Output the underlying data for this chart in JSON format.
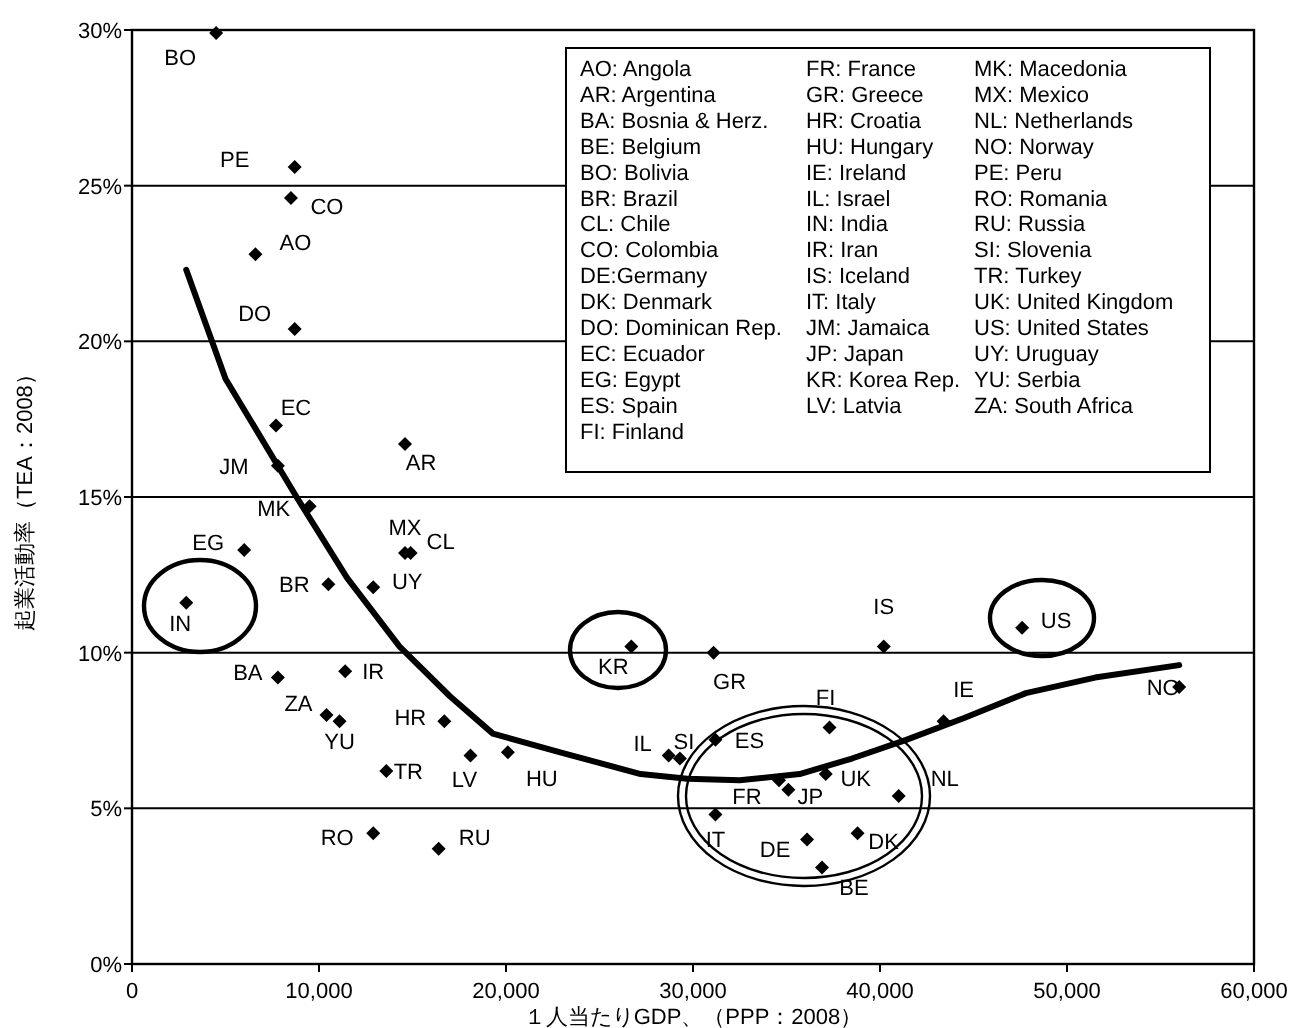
{
  "chart_data": {
    "type": "scatter",
    "xlabel": "１人当たりGDP、（PPP：2008）",
    "ylabel": "起業活動率（TEA：2008）",
    "xlim": [
      0,
      60000
    ],
    "ylim": [
      0,
      30
    ],
    "xticks": [
      0,
      {
        "value": 10000,
        "label": "10,000"
      },
      {
        "value": 20000,
        "label": "20,000"
      },
      {
        "value": 30000,
        "label": "30,000"
      },
      {
        "value": 40000,
        "label": "40,000"
      },
      {
        "value": 50000,
        "label": "50,000"
      },
      {
        "value": 60000,
        "label": "60,000"
      }
    ],
    "yticks": [
      {
        "value": 0,
        "label": "0%"
      },
      {
        "value": 5,
        "label": "5%"
      },
      {
        "value": 10,
        "label": "10%"
      },
      {
        "value": 15,
        "label": "15%"
      },
      {
        "value": 20,
        "label": "20%"
      },
      {
        "value": 25,
        "label": "25%"
      },
      {
        "value": 30,
        "label": "30%"
      }
    ],
    "grid": "y",
    "marker": "diamond",
    "annotations": [
      "AO: Angola",
      "AR: Argentina",
      "BA: Bosnia & Herz.",
      "BE: Belgium",
      "BO: Bolivia",
      "BR: Brazil",
      "CL: Chile",
      "CO: Colombia",
      "DE:Germany",
      "DK: Denmark",
      "DO: Dominican Rep.",
      "EC: Ecuador",
      "EG: Egypt",
      "ES: Spain",
      "FI: Finland",
      "FR: France",
      "GR: Greece",
      "HR: Croatia",
      "HU: Hungary",
      "IE: Ireland",
      "IL: Israel",
      "IN: India",
      "IR: Iran",
      "IS: Iceland",
      "IT: Italy",
      "JM: Jamaica",
      "JP: Japan",
      "KR: Korea  Rep.",
      "LV: Latvia",
      "MK: Macedonia",
      "MX: Mexico",
      "NL: Netherlands",
      "NO: Norway",
      "PE: Peru",
      "RO: Romania",
      "RU: Russia",
      "SI: Slovenia",
      "TR: Turkey",
      "UK: United Kingdom",
      "US: United States",
      "UY: Uruguay",
      "YU: Serbia",
      "ZA: South Africa"
    ],
    "series": [
      {
        "name": "BO",
        "color": "#000000",
        "x": [
          4500
        ],
        "values": [
          29.9
        ]
      },
      {
        "name": "PE",
        "color": "#000000",
        "x": [
          8700
        ],
        "values": [
          25.6
        ]
      },
      {
        "name": "CO",
        "color": "#000000",
        "x": [
          8500
        ],
        "values": [
          24.6
        ]
      },
      {
        "name": "AO",
        "color": "#000000",
        "x": [
          6600
        ],
        "values": [
          22.8
        ]
      },
      {
        "name": "DO",
        "color": "#000000",
        "x": [
          8700
        ],
        "values": [
          20.4
        ]
      },
      {
        "name": "EC",
        "color": "#000000",
        "x": [
          7700
        ],
        "values": [
          17.3
        ]
      },
      {
        "name": "AR",
        "color": "#000000",
        "x": [
          14600
        ],
        "values": [
          16.7
        ]
      },
      {
        "name": "JM",
        "color": "#000000",
        "x": [
          7800
        ],
        "values": [
          16.0
        ]
      },
      {
        "name": "MK",
        "color": "#000000",
        "x": [
          9500
        ],
        "values": [
          14.7
        ]
      },
      {
        "name": "EG",
        "color": "#000000",
        "x": [
          6000
        ],
        "values": [
          13.3
        ]
      },
      {
        "name": "MX",
        "color": "#000000",
        "x": [
          14600
        ],
        "values": [
          13.2
        ]
      },
      {
        "name": "CL",
        "color": "#000000",
        "x": [
          14900
        ],
        "values": [
          13.2
        ]
      },
      {
        "name": "BR",
        "color": "#000000",
        "x": [
          10500
        ],
        "values": [
          12.2
        ]
      },
      {
        "name": "UY",
        "color": "#000000",
        "x": [
          12900
        ],
        "values": [
          12.1
        ]
      },
      {
        "name": "IN",
        "color": "#000000",
        "x": [
          2900
        ],
        "values": [
          11.6
        ]
      },
      {
        "name": "KR",
        "color": "#000000",
        "x": [
          26700
        ],
        "values": [
          10.2
        ]
      },
      {
        "name": "GR",
        "color": "#000000",
        "x": [
          31100
        ],
        "values": [
          10.0
        ]
      },
      {
        "name": "IS",
        "color": "#000000",
        "x": [
          40200
        ],
        "values": [
          10.2
        ]
      },
      {
        "name": "US",
        "color": "#000000",
        "x": [
          47600
        ],
        "values": [
          10.8
        ]
      },
      {
        "name": "BA",
        "color": "#000000",
        "x": [
          7800
        ],
        "values": [
          9.2
        ]
      },
      {
        "name": "IR",
        "color": "#000000",
        "x": [
          11400
        ],
        "values": [
          9.4
        ]
      },
      {
        "name": "ZA",
        "color": "#000000",
        "x": [
          10400
        ],
        "values": [
          8.0
        ]
      },
      {
        "name": "YU",
        "color": "#000000",
        "x": [
          11100
        ],
        "values": [
          7.8
        ]
      },
      {
        "name": "HR",
        "color": "#000000",
        "x": [
          16700
        ],
        "values": [
          7.8
        ]
      },
      {
        "name": "LV",
        "color": "#000000",
        "x": [
          18100
        ],
        "values": [
          6.7
        ]
      },
      {
        "name": "HU",
        "color": "#000000",
        "x": [
          20100
        ],
        "values": [
          6.8
        ]
      },
      {
        "name": "TR",
        "color": "#000000",
        "x": [
          13600
        ],
        "values": [
          6.2
        ]
      },
      {
        "name": "RO",
        "color": "#000000",
        "x": [
          12900
        ],
        "values": [
          4.2
        ]
      },
      {
        "name": "RU",
        "color": "#000000",
        "x": [
          16400
        ],
        "values": [
          3.7
        ]
      },
      {
        "name": "IL",
        "color": "#000000",
        "x": [
          28700
        ],
        "values": [
          6.7
        ]
      },
      {
        "name": "SI",
        "color": "#000000",
        "x": [
          29300
        ],
        "values": [
          6.6
        ]
      },
      {
        "name": "ES",
        "color": "#000000",
        "x": [
          31200
        ],
        "values": [
          7.2
        ]
      },
      {
        "name": "FI",
        "color": "#000000",
        "x": [
          37300
        ],
        "values": [
          7.6
        ]
      },
      {
        "name": "FR",
        "color": "#000000",
        "x": [
          34600
        ],
        "values": [
          5.9
        ]
      },
      {
        "name": "JP",
        "color": "#000000",
        "x": [
          35100
        ],
        "values": [
          5.6
        ]
      },
      {
        "name": "UK",
        "color": "#000000",
        "x": [
          37100
        ],
        "values": [
          6.1
        ]
      },
      {
        "name": "NL",
        "color": "#000000",
        "x": [
          41000
        ],
        "values": [
          5.4
        ]
      },
      {
        "name": "IT",
        "color": "#000000",
        "x": [
          31200
        ],
        "values": [
          4.8
        ]
      },
      {
        "name": "DE",
        "color": "#000000",
        "x": [
          36100
        ],
        "values": [
          4.0
        ]
      },
      {
        "name": "DK",
        "color": "#000000",
        "x": [
          38800
        ],
        "values": [
          4.2
        ]
      },
      {
        "name": "BE",
        "color": "#000000",
        "x": [
          36900
        ],
        "values": [
          3.1
        ]
      },
      {
        "name": "IE",
        "color": "#000000",
        "x": [
          43400
        ],
        "values": [
          7.8
        ]
      },
      {
        "name": "NO",
        "color": "#000000",
        "x": [
          56000
        ],
        "values": [
          8.9
        ]
      },
      {
        "type": "line",
        "marker": "none",
        "color": "#000000",
        "x": [
          2900,
          5000,
          8800,
          11500,
          14300,
          17000,
          19300,
          22900,
          27200,
          29700,
          32500,
          35700,
          38500,
          41400,
          44500,
          47800,
          51500,
          56000
        ],
        "values": [
          22.3,
          18.8,
          15.0,
          12.4,
          10.2,
          8.6,
          7.4,
          6.8,
          6.1,
          5.95,
          5.9,
          6.1,
          6.6,
          7.2,
          7.9,
          8.7,
          9.2,
          9.6
        ]
      }
    ]
  }
}
